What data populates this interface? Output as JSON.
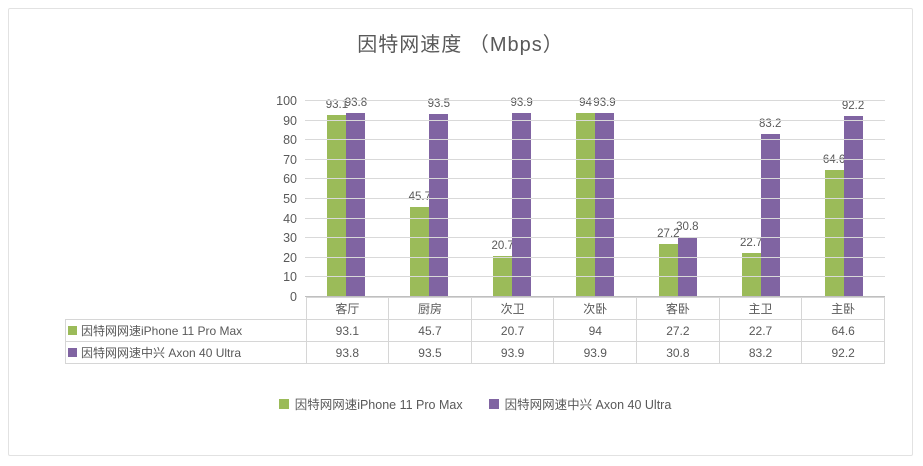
{
  "title": "因特网速度 （Mbps）",
  "chart_data": {
    "type": "bar",
    "title": "因特网速度 （Mbps）",
    "categories": [
      "客厅",
      "厨房",
      "次卫",
      "次卧",
      "客卧",
      "主卫",
      "主卧"
    ],
    "series": [
      {
        "name": "因特网网速iPhone 11 Pro Max",
        "color": "#9bbb59",
        "values": [
          93.1,
          45.7,
          20.7,
          94,
          27.2,
          22.7,
          64.6
        ]
      },
      {
        "name": "因特网网速中兴 Axon 40 Ultra",
        "color": "#8064a2",
        "values": [
          93.8,
          93.5,
          93.9,
          93.9,
          30.8,
          83.2,
          92.2
        ]
      }
    ],
    "ylim": [
      0,
      100
    ],
    "yticks": [
      0,
      10,
      20,
      30,
      40,
      50,
      60,
      70,
      80,
      90,
      100
    ],
    "grid": true,
    "data_labels": true,
    "data_table": true,
    "legend_position": "bottom"
  },
  "colors": {
    "text": "#595959",
    "gridline": "#d9d9d9",
    "border": "#d6d6d6"
  }
}
